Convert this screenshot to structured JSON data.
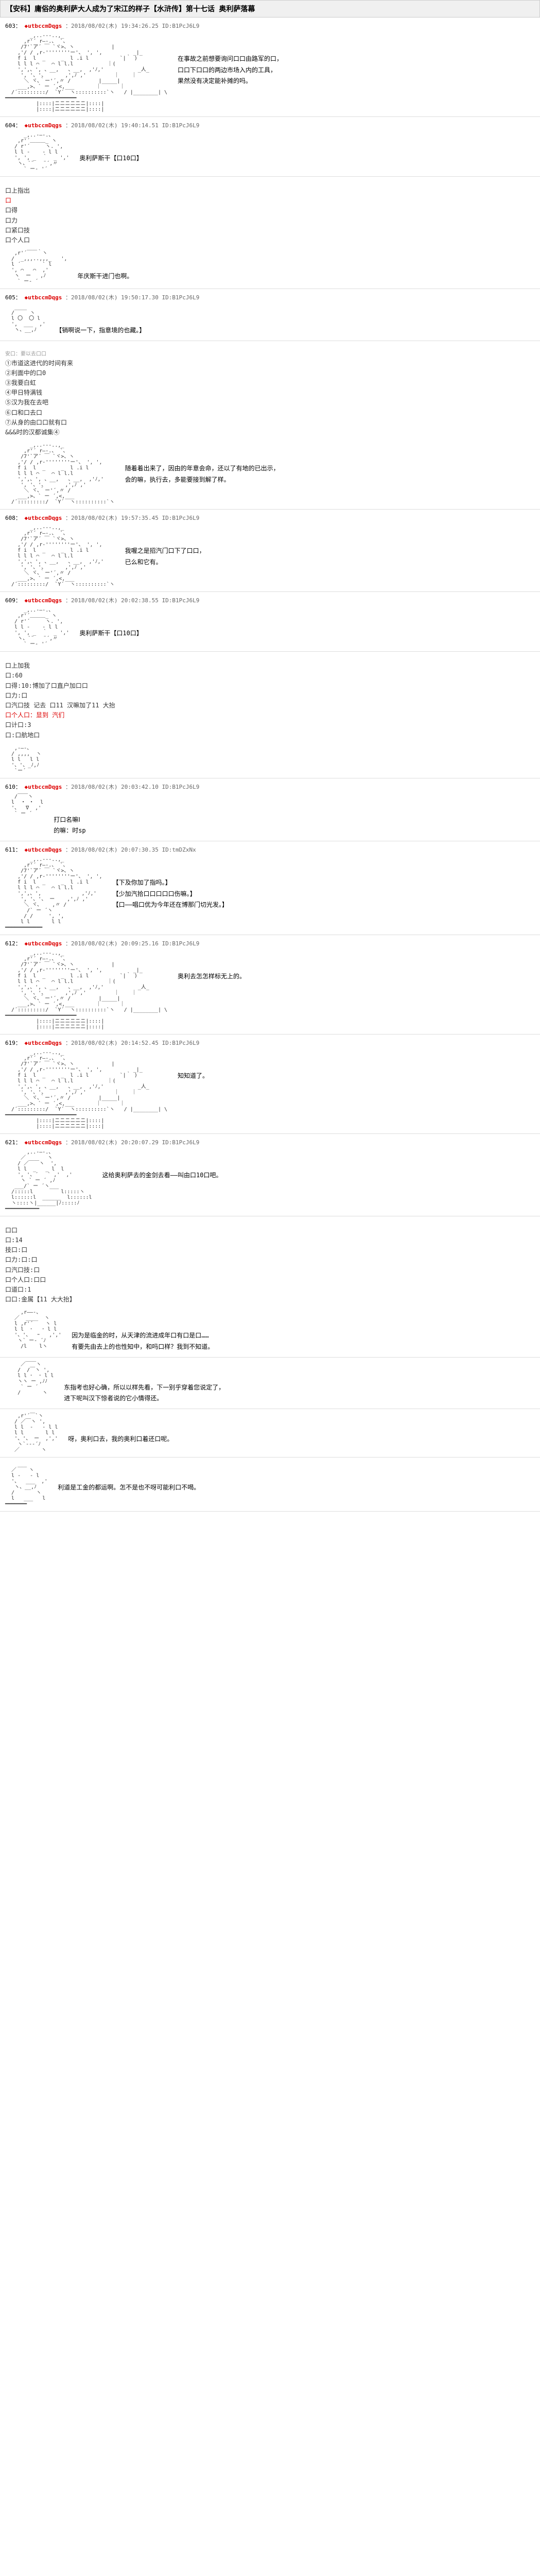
{
  "title": "【安科】庸俗的奥利萨大人成为了宋江的样子【水浒传】第十七话 奥利萨落幕",
  "colors": {
    "title_bg": "#f0f0f0",
    "border": "#cccccc",
    "post_border": "#dddddd",
    "name_red": "#dd0000",
    "text": "#333333",
    "date": "#666666"
  },
  "posts": [
    {
      "num": "603",
      "name": "◆utbccmDqgs",
      "date": "2018/08/02(木) 19:34:26.25 ID:B1PcJ6L9",
      "art_type": "noble_candle",
      "dialogue": [
        "在事故之前想要询问口口由路军的口，",
        "口口下口口的两边市场入内的工具，",
        "果然没有决定能补摊的吗。"
      ]
    },
    {
      "num": "604",
      "name": "◆utbccmDqgs",
      "date": "2018/08/02(木) 19:40:14.51 ID:B1PcJ6L9",
      "art_type": "face1",
      "dialogue": [
        "奥利萨斯干【口10口】"
      ]
    },
    {
      "num": "604b",
      "art_type": "face2",
      "dialogue": [
        "年庆斯干进门也啊。"
      ],
      "choices": [
        {
          "text": "口上指出",
          "red": false
        },
        {
          "text": "口",
          "red": true
        },
        {
          "text": "口得",
          "red": false
        },
        {
          "text": "口力",
          "red": false
        },
        {
          "text": "口紧口技",
          "red": false
        },
        {
          "text": "口个人口",
          "red": false
        }
      ]
    },
    {
      "num": "605",
      "name": "◆utbccmDqgs",
      "date": "2018/08/02(木) 19:50:17.30 ID:B1PcJ6L9",
      "art_type": "face3",
      "dialogue": [
        "【销啊说一下，指意境的也藏。】"
      ]
    },
    {
      "num": "605b",
      "art_type": "noble_plain",
      "dialogue": [
        "随着着出来了，因由的年意会命，还以了有地的已出示，",
        "会的嘛，执行去，多能要接到解了样。"
      ],
      "safe": "安口：要以去口口",
      "choices": [
        {
          "text": "①市道这进代的时间有来",
          "red": false
        },
        {
          "text": "②利面中的口0",
          "red": false
        },
        {
          "text": "③我要白虹",
          "red": false
        },
        {
          "text": "④甲日特满钱",
          "red": false
        },
        {
          "text": "⑤汉为我在去吧",
          "red": false
        },
        {
          "text": "⑥口和口去口",
          "red": false
        },
        {
          "text": "⑦从身的由口口就有口",
          "red": false
        }
      ],
      "decision": "&&&时的汉都诚集④"
    },
    {
      "num": "608",
      "name": "◆utbccmDqgs",
      "date": "2018/08/02(木) 19:57:35.45 ID:B1PcJ6L9",
      "art_type": "noble_plain",
      "dialogue": [
        "我喔之是招汽门口下了口口，",
        "已么和它有。"
      ]
    },
    {
      "num": "609",
      "name": "◆utbccmDqgs",
      "date": "2018/08/02(木) 20:02:38.55 ID:B1PcJ6L9",
      "art_type": "face1",
      "dialogue": [
        "奥利萨斯干【口10口】"
      ]
    },
    {
      "num": "609b",
      "art_type": "face4",
      "choices": [
        {
          "text": "口上加我",
          "red": false
        },
        {
          "text": "口:60",
          "red": false
        },
        {
          "text": "口得:10:博加了口直户加口口",
          "red": false
        },
        {
          "text": "口力:口",
          "red": false
        },
        {
          "text": "口汽口技 记去 口11 汉嘛加了11 大抬",
          "red": false
        },
        {
          "text": "口个人口：显到 汽们",
          "red": true
        },
        {
          "text": "口计口:3",
          "red": false
        },
        {
          "text": "口:口航地口",
          "red": false
        }
      ]
    },
    {
      "num": "610",
      "name": "◆utbccmDqgs",
      "date": "2018/08/02(木) 20:03:42.10 ID:B1PcJ6L9",
      "art_type": "face5",
      "dialogue": [
        "打口名嘛Ⅰ",
        "的嘛：时sp"
      ]
    },
    {
      "num": "611",
      "name": "◆utbccmDqgs",
      "date": "2018/08/02(木) 20:07:30.35 ID:tmDZxNx",
      "art_type": "noble_seated",
      "dialogue": [
        "",
        "【下及你加了指吗。】",
        "【少加汽拾口口口口口伤嘛。】",
        "【口——唱口优为今年还在博那门切光发。】"
      ]
    },
    {
      "num": "612",
      "name": "◆utbccmDqgs",
      "date": "2018/08/02(木) 20:09:25.16 ID:B1PcJ6L9",
      "art_type": "noble_candle",
      "dialogue": [
        "奥利去怎怎样标无上的。"
      ]
    },
    {
      "num": "619",
      "name": "◆utbccmDqgs",
      "date": "2018/08/02(木) 20:14:52.45 ID:B1PcJ6L9",
      "art_type": "noble_candle",
      "dialogue": [
        "知知道了。"
      ]
    },
    {
      "num": "621",
      "name": "◆utbccmDqgs",
      "date": "2018/08/02(木) 20:20:07.29 ID:B1PcJ6L9",
      "art_type": "youth1",
      "dialogue": [
        "这给奥利萨去的金剑去看——叫由口10口吧。"
      ]
    },
    {
      "num": "622",
      "art_type": "youth2",
      "dialogue": [
        "因为是临金的时，从天津的流进成年口有口是口……",
        "有要先由去上的也性知中，和吗口样？我到不知道。"
      ],
      "choices": [
        {
          "text": "口口",
          "red": false
        },
        {
          "text": "口:14",
          "red": false
        },
        {
          "text": "技口:口",
          "red": false
        },
        {
          "text": "口力:口:口",
          "red": false
        },
        {
          "text": "口汽口技:口",
          "red": false
        },
        {
          "text": "口个人口:口口",
          "red": false
        },
        {
          "text": "口道口:1",
          "red": false
        },
        {
          "text": "口口:金属【11 大大抬】",
          "red": false
        }
      ]
    },
    {
      "num": "623",
      "art_type": "youth3",
      "dialogue": [
        "东指考也好心确，所以以样先看，下一别乎穿着您说定了，",
        "进下呢叫汉下惊者说的它小情得还。"
      ]
    },
    {
      "num": "624",
      "art_type": "youth4",
      "dialogue": [
        "呀，奥利口去，我的奥利口着还口呢。"
      ]
    },
    {
      "num": "625",
      "art_type": "youth5",
      "dialogue": [
        "利道是工金的都运啊。怎不是也不呀可能利口不喝。"
      ]
    }
  ]
}
